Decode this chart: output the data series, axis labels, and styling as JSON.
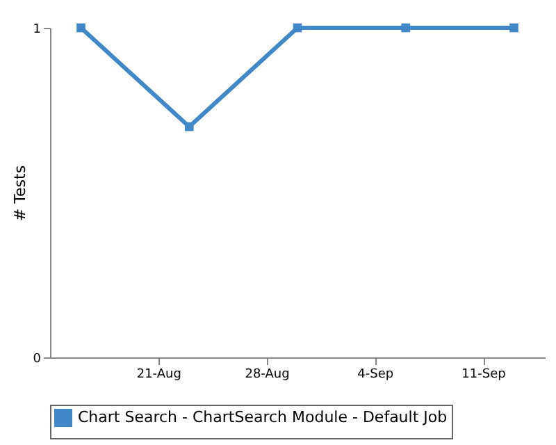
{
  "chart_data": {
    "type": "line",
    "ylabel": "# Tests",
    "x": [
      "--08-16",
      "--08-23",
      "--08-30",
      "--09-06",
      "--09-13"
    ],
    "series": [
      {
        "name": "Chart Search - ChartSearch Module - Default Job",
        "color": "#4088c8",
        "values": [
          1,
          0.7,
          1,
          1,
          1
        ]
      }
    ],
    "xlim": [
      "--08-14",
      "--09-15"
    ],
    "xticks": [
      {
        "value": "--08-21",
        "label": "21-Aug"
      },
      {
        "value": "--08-28",
        "label": "28-Aug"
      },
      {
        "value": "--09-04",
        "label": "4-Sep"
      },
      {
        "value": "--09-11",
        "label": "11-Sep"
      }
    ],
    "ylim": [
      0,
      1
    ],
    "yticks": [
      0,
      1
    ],
    "legend": "bottom",
    "marker": "square",
    "line_style": "solid"
  }
}
